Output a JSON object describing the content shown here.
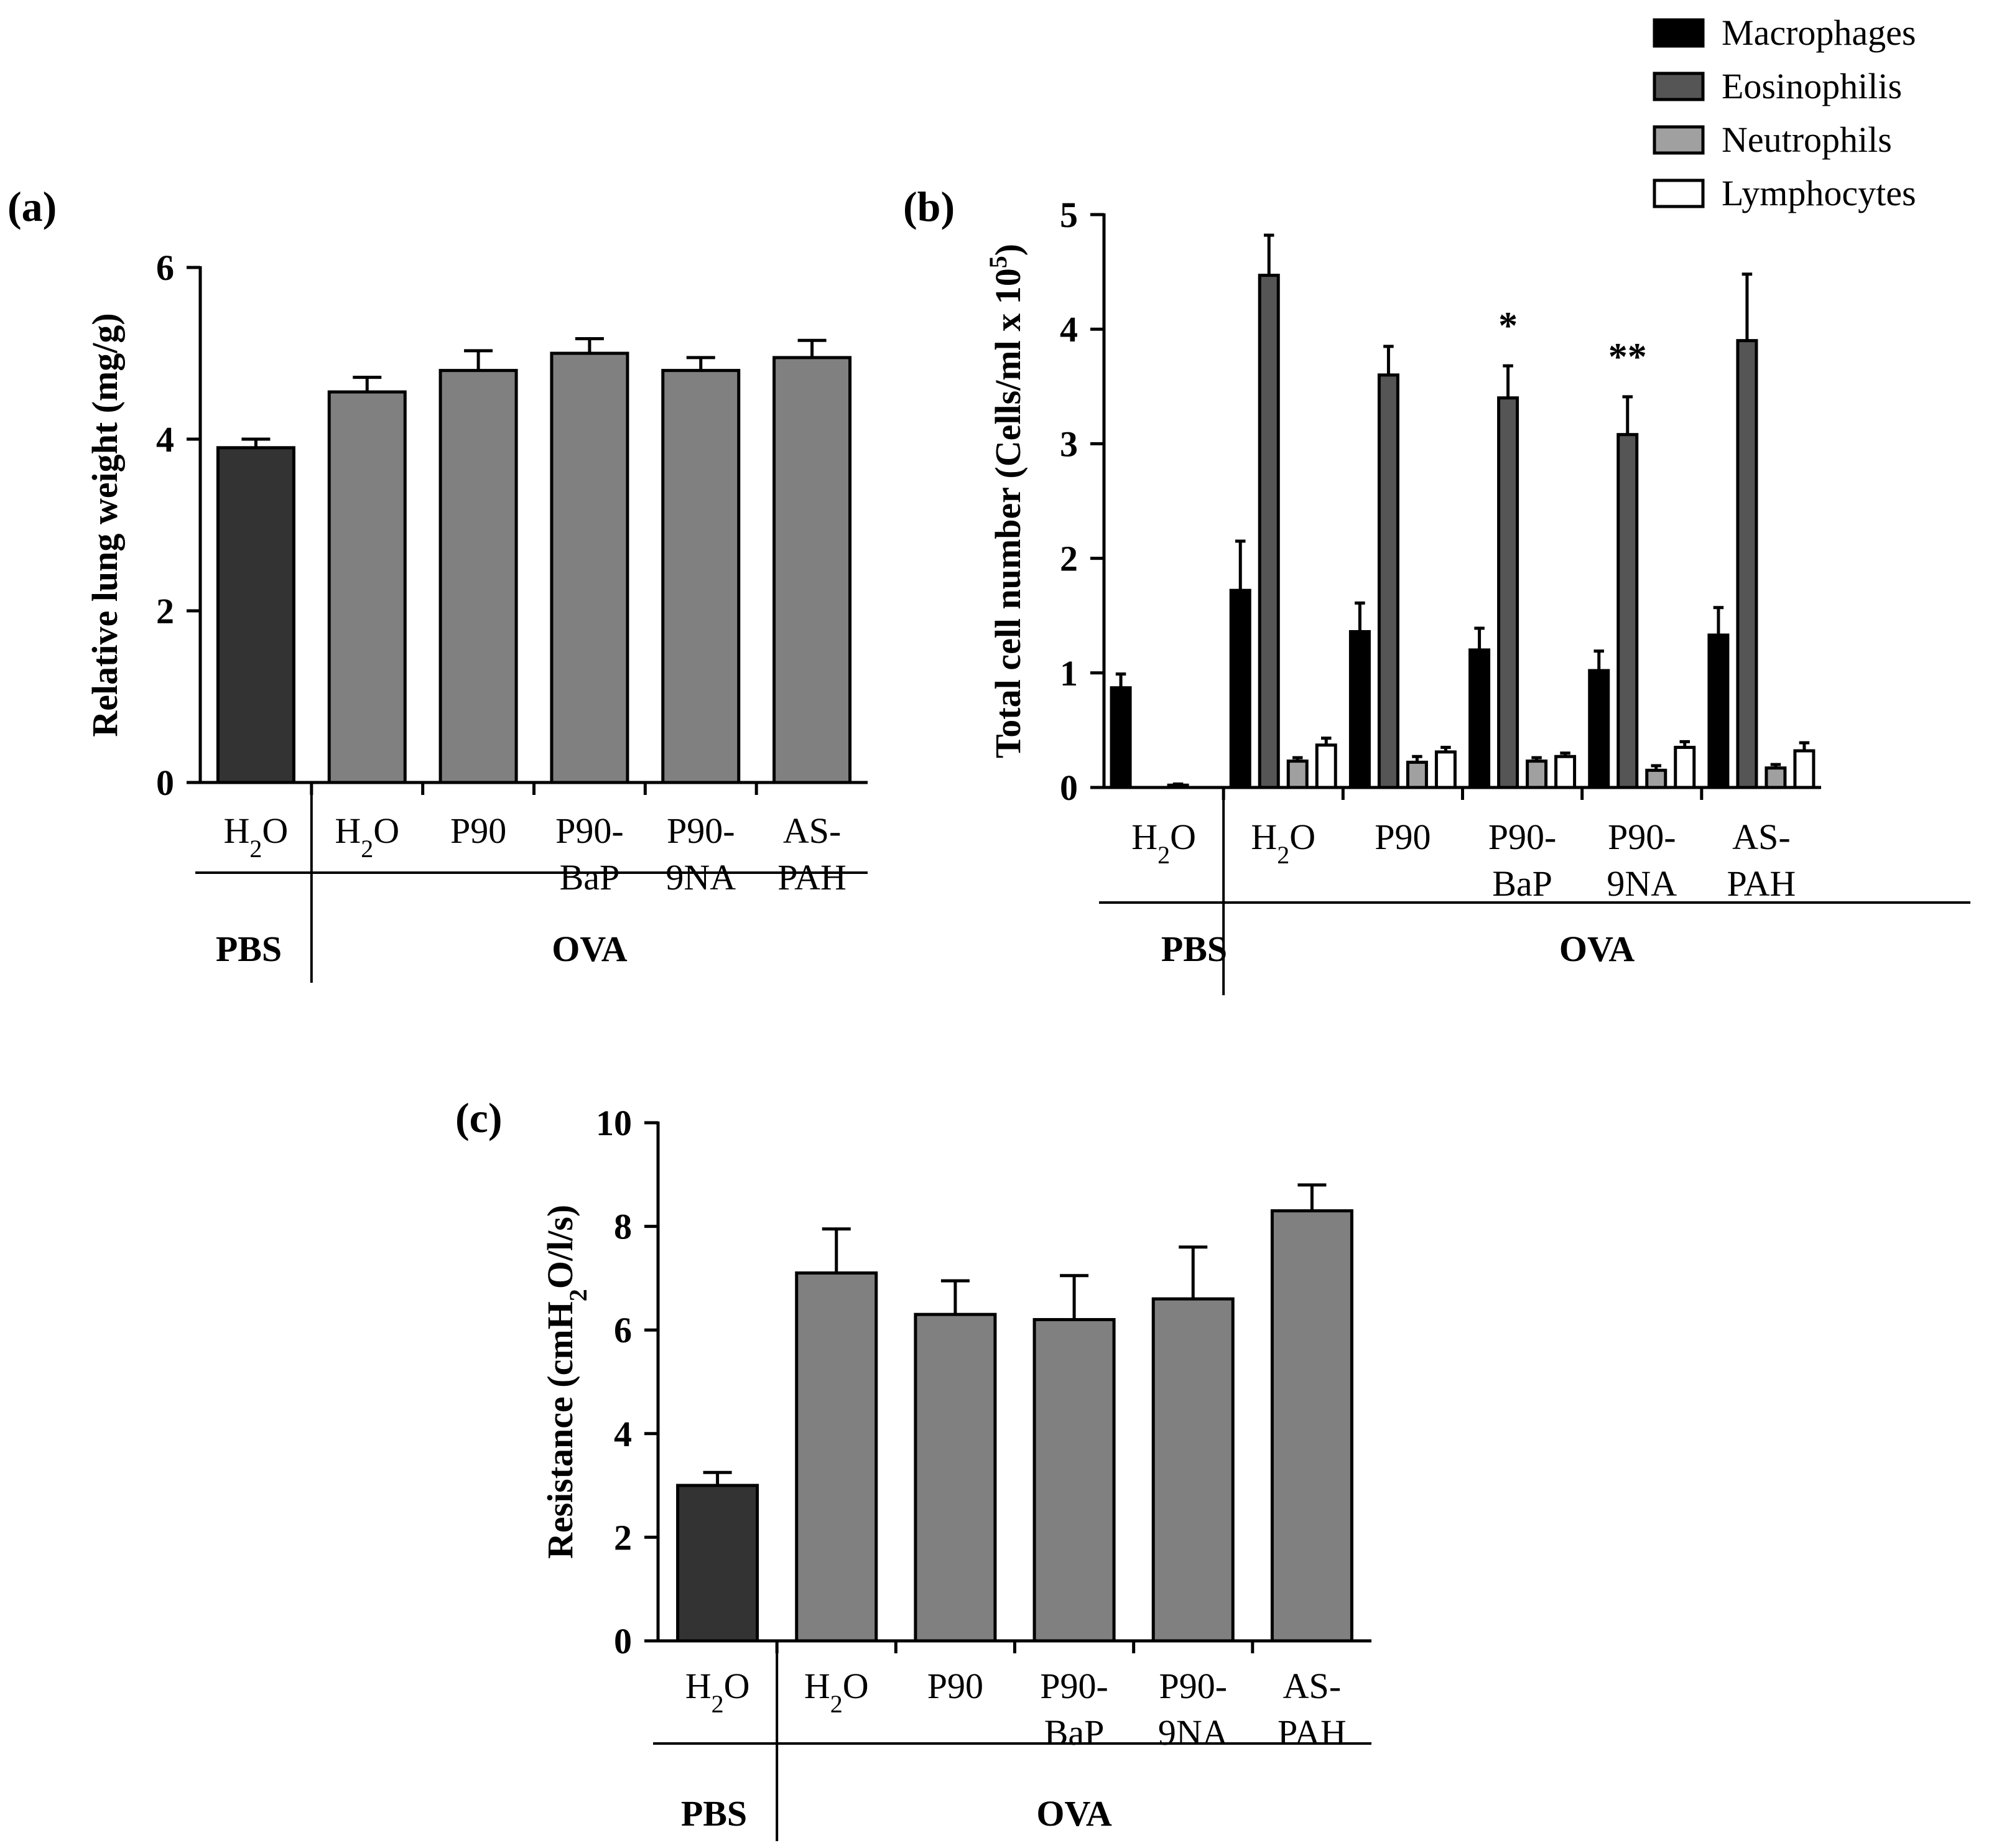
{
  "legend": {
    "items": [
      {
        "label": "Macrophages",
        "color": "#000000"
      },
      {
        "label": "Eosinophilis",
        "color": "#555555"
      },
      {
        "label": "Neutrophils",
        "color": "#a0a0a0"
      },
      {
        "label": "Lymphocytes",
        "color": "#ffffff"
      }
    ]
  },
  "chart_data": [
    {
      "panel": "(a)",
      "type": "bar",
      "ylabel": "Relative lung weight (mg/g)",
      "ylim": [
        0,
        6
      ],
      "yticks": [
        0,
        2,
        4,
        6
      ],
      "categories": [
        {
          "line1": "H",
          "sub": "2",
          "line1_tail": "O",
          "line2": ""
        },
        {
          "line1": "H",
          "sub": "2",
          "line1_tail": "O",
          "line2": ""
        },
        {
          "line1": "P90",
          "sub": "",
          "line1_tail": "",
          "line2": ""
        },
        {
          "line1": "P90-",
          "sub": "",
          "line1_tail": "",
          "line2": "BaP"
        },
        {
          "line1": "P90-",
          "sub": "",
          "line1_tail": "",
          "line2": "9NA"
        },
        {
          "line1": "AS-",
          "sub": "",
          "line1_tail": "",
          "line2": "PAH"
        }
      ],
      "groups": [
        {
          "label": "PBS",
          "count": 1
        },
        {
          "label": "OVA",
          "count": 5
        }
      ],
      "values": [
        3.9,
        4.55,
        4.8,
        5.0,
        4.8,
        4.95
      ],
      "errors": [
        0.1,
        0.17,
        0.23,
        0.17,
        0.15,
        0.2
      ],
      "colors": [
        "#333333",
        "#808080",
        "#808080",
        "#808080",
        "#808080",
        "#808080"
      ]
    },
    {
      "panel": "(b)",
      "type": "bar",
      "ylabel": "Total cell number (Cells/ml x 10",
      "ylabel_sup": "5",
      "ylabel_tail": ")",
      "ylim": [
        0,
        5
      ],
      "yticks": [
        0,
        1,
        2,
        3,
        4,
        5
      ],
      "categories": [
        {
          "line1": "H",
          "sub": "2",
          "line1_tail": "O",
          "line2": ""
        },
        {
          "line1": "H",
          "sub": "2",
          "line1_tail": "O",
          "line2": ""
        },
        {
          "line1": "P90",
          "sub": "",
          "line1_tail": "",
          "line2": ""
        },
        {
          "line1": "P90-",
          "sub": "",
          "line1_tail": "",
          "line2": "BaP"
        },
        {
          "line1": "P90-",
          "sub": "",
          "line1_tail": "",
          "line2": "9NA"
        },
        {
          "line1": "AS-",
          "sub": "",
          "line1_tail": "",
          "line2": "PAH"
        }
      ],
      "groups": [
        {
          "label": "PBS",
          "count": 1
        },
        {
          "label": "OVA",
          "count": 5
        }
      ],
      "series": [
        {
          "name": "Macrophages",
          "values": [
            0.87,
            1.72,
            1.36,
            1.2,
            1.02,
            1.33
          ],
          "errors": [
            0.12,
            0.43,
            0.25,
            0.19,
            0.17,
            0.24
          ]
        },
        {
          "name": "Eosinophilis",
          "values": [
            0.0,
            4.47,
            3.6,
            3.4,
            3.08,
            3.9
          ],
          "errors": [
            0.0,
            0.35,
            0.25,
            0.28,
            0.33,
            0.58
          ]
        },
        {
          "name": "Neutrophils",
          "values": [
            0.02,
            0.23,
            0.22,
            0.23,
            0.15,
            0.17
          ],
          "errors": [
            0.01,
            0.03,
            0.05,
            0.03,
            0.04,
            0.03
          ]
        },
        {
          "name": "Lymphocytes",
          "values": [
            0.0,
            0.37,
            0.31,
            0.27,
            0.35,
            0.32
          ],
          "errors": [
            0.0,
            0.06,
            0.04,
            0.03,
            0.05,
            0.07
          ]
        }
      ],
      "annotations": [
        {
          "category": 3,
          "text": "*"
        },
        {
          "category": 4,
          "text": "**"
        }
      ]
    },
    {
      "panel": "(c)",
      "type": "bar",
      "ylabel": "Resistance (cmH",
      "ylabel_sub": "2",
      "ylabel_tail": "O/l/s)",
      "ylim": [
        0,
        10
      ],
      "yticks": [
        0,
        2,
        4,
        6,
        8,
        10
      ],
      "categories": [
        {
          "line1": "H",
          "sub": "2",
          "line1_tail": "O",
          "line2": ""
        },
        {
          "line1": "H",
          "sub": "2",
          "line1_tail": "O",
          "line2": ""
        },
        {
          "line1": "P90",
          "sub": "",
          "line1_tail": "",
          "line2": ""
        },
        {
          "line1": "P90-",
          "sub": "",
          "line1_tail": "",
          "line2": "BaP"
        },
        {
          "line1": "P90-",
          "sub": "",
          "line1_tail": "",
          "line2": "9NA"
        },
        {
          "line1": "AS-",
          "sub": "",
          "line1_tail": "",
          "line2": "PAH"
        }
      ],
      "groups": [
        {
          "label": "PBS",
          "count": 1
        },
        {
          "label": "OVA",
          "count": 5
        }
      ],
      "values": [
        3.0,
        7.1,
        6.3,
        6.2,
        6.6,
        8.3
      ],
      "errors": [
        0.25,
        0.85,
        0.65,
        0.85,
        1.0,
        0.5
      ],
      "colors": [
        "#333333",
        "#808080",
        "#808080",
        "#808080",
        "#808080",
        "#808080"
      ]
    }
  ]
}
